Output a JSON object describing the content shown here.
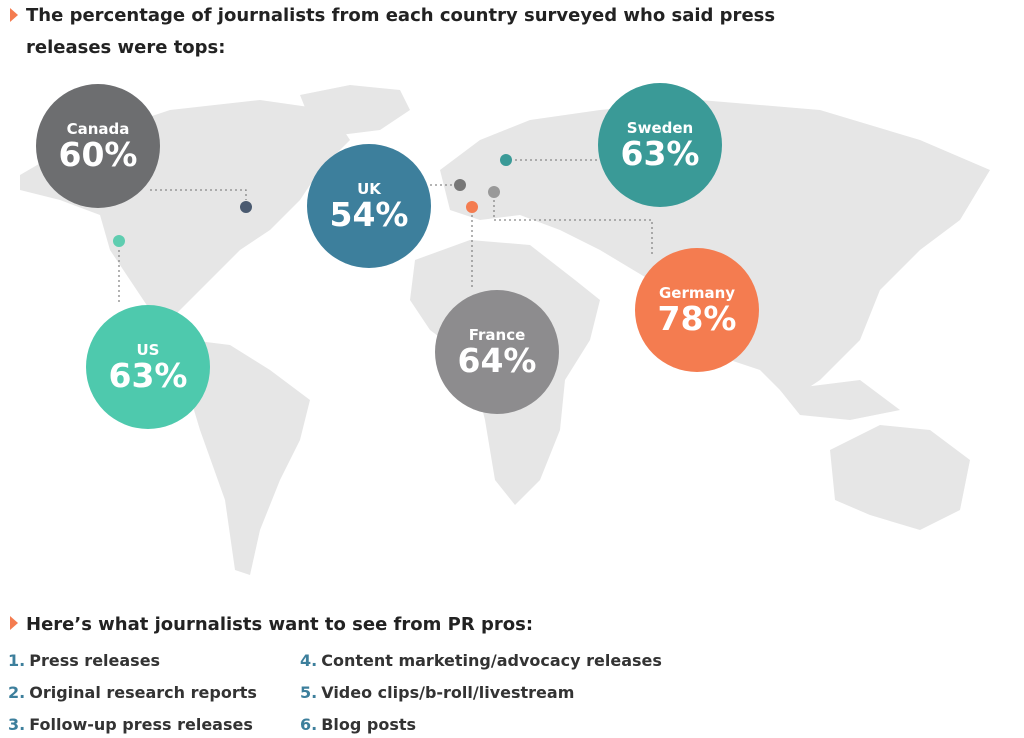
{
  "header": {
    "title_line1": "The percentage of journalists from each country surveyed who said press",
    "title_line2": "releases were tops:"
  },
  "countries": [
    {
      "name": "Canada",
      "value": "60%",
      "color": "#6d6e70"
    },
    {
      "name": "UK",
      "value": "54%",
      "color": "#3d7f9c"
    },
    {
      "name": "Sweden",
      "value": "63%",
      "color": "#3a9a97"
    },
    {
      "name": "Germany",
      "value": "78%",
      "color": "#f47c50"
    },
    {
      "name": "France",
      "value": "64%",
      "color": "#8d8c8e"
    },
    {
      "name": "US",
      "value": "63%",
      "color": "#4ec9ad"
    }
  ],
  "list": {
    "title": "Here’s what journalists want to see from PR pros:",
    "items": [
      {
        "number": "1.",
        "text": "Press releases"
      },
      {
        "number": "2.",
        "text": "Original research reports"
      },
      {
        "number": "3.",
        "text": "Follow-up press releases"
      },
      {
        "number": "4.",
        "text": "Content marketing/advocacy releases"
      },
      {
        "number": "5.",
        "text": "Video clips/b-roll/livestream"
      },
      {
        "number": "6.",
        "text": "Blog posts"
      }
    ]
  }
}
